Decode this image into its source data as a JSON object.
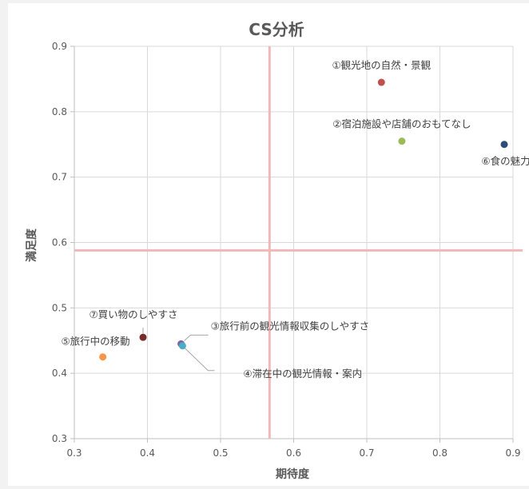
{
  "chart_data": {
    "type": "scatter",
    "title": "CS分析",
    "xlabel": "期待度",
    "ylabel": "満足度",
    "xlim": [
      0.3,
      0.9
    ],
    "ylim": [
      0.3,
      0.9
    ],
    "xticks": [
      "0.3",
      "0.4",
      "0.5",
      "0.6",
      "0.7",
      "0.8",
      "0.9"
    ],
    "yticks": [
      "0.3",
      "0.4",
      "0.5",
      "0.6",
      "0.7",
      "0.8",
      "0.9"
    ],
    "grid": true,
    "reference_lines": {
      "x": 0.567,
      "y": 0.588,
      "color": "#f0b8b8"
    },
    "points": [
      {
        "label": "①観光地の自然・景観",
        "x": 0.72,
        "y": 0.845,
        "color": "#c0504d"
      },
      {
        "label": "②宿泊施設や店舗のおもてなし",
        "x": 0.748,
        "y": 0.755,
        "color": "#9bbb59"
      },
      {
        "label": "③旅行前の観光情報収集のしやすさ",
        "x": 0.446,
        "y": 0.445,
        "color": "#8064a2"
      },
      {
        "label": "④滞在中の観光情報・案内",
        "x": 0.448,
        "y": 0.442,
        "color": "#4bacc6"
      },
      {
        "label": "⑤旅行中の移動",
        "x": 0.339,
        "y": 0.425,
        "color": "#f79646"
      },
      {
        "label": "⑥食の魅力",
        "x": 0.888,
        "y": 0.75,
        "color": "#2c4d75"
      },
      {
        "label": "⑦買い物のしやすさ",
        "x": 0.394,
        "y": 0.455,
        "color": "#772c2a"
      }
    ]
  }
}
